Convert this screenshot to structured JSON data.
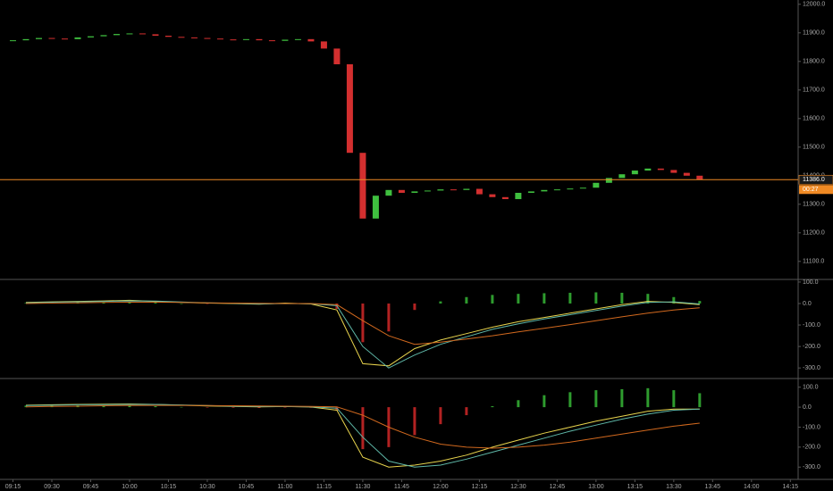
{
  "chart_data": [
    {
      "type": "line",
      "x": [
        "09:15",
        "09:20",
        "09:25",
        "09:30",
        "09:35",
        "09:40",
        "09:45",
        "09:50",
        "09:55",
        "10:00",
        "10:05",
        "10:10",
        "10:15",
        "10:20",
        "10:25",
        "10:30",
        "10:35",
        "10:40",
        "10:45",
        "10:50",
        "10:55",
        "11:00",
        "11:05",
        "11:10",
        "11:15",
        "11:20",
        "11:25",
        "11:30",
        "11:35",
        "11:40",
        "11:45",
        "11:50",
        "11:55",
        "12:00",
        "12:05",
        "12:10",
        "12:15",
        "12:20",
        "12:25",
        "12:30",
        "12:35",
        "12:40",
        "12:45",
        "12:50",
        "12:55",
        "13:00",
        "13:05",
        "13:10",
        "13:15",
        "13:20",
        "13:25",
        "13:30",
        "13:35",
        "13:40"
      ],
      "values": [
        11874,
        11878,
        11882,
        11880,
        11878,
        11884,
        11888,
        11892,
        11896,
        11898,
        11895,
        11890,
        11886,
        11884,
        11882,
        11880,
        11877,
        11876,
        11878,
        11874,
        11872,
        11876,
        11878,
        11870,
        11845,
        11790,
        11480,
        11250,
        11330,
        11350,
        11340,
        11345,
        11348,
        11352,
        11350,
        11354,
        11335,
        11325,
        11318,
        11340,
        11345,
        11350,
        11352,
        11355,
        11358,
        11375,
        11392,
        11405,
        11418,
        11425,
        11420,
        11410,
        11400,
        11386
      ],
      "up_color": "#3fbf3f",
      "down_color": "#d32f2f",
      "xlim": [
        "09:10",
        "14:18"
      ],
      "ylim": [
        11040,
        12015
      ],
      "yticks": [
        {
          "value": 11100,
          "label": "11100.0"
        },
        {
          "value": 11200,
          "label": "11200.0"
        },
        {
          "value": 11300,
          "label": "11300.0"
        },
        {
          "value": 11400,
          "label": "11400.0"
        },
        {
          "value": 11500,
          "label": "11500.0"
        },
        {
          "value": 11600,
          "label": "11600.0"
        },
        {
          "value": 11700,
          "label": "11700.0"
        },
        {
          "value": 11800,
          "label": "11800.0"
        },
        {
          "value": 11900,
          "label": "11900.0"
        },
        {
          "value": 12000,
          "label": "12000.0"
        }
      ],
      "price_line": 11386,
      "price_line_label": "11386.0",
      "price_line_color": "#f08a24",
      "countdown": "00:27"
    },
    {
      "type": "macd",
      "x": [
        "09:20",
        "09:30",
        "09:40",
        "09:50",
        "10:00",
        "10:10",
        "10:20",
        "10:30",
        "10:40",
        "10:50",
        "11:00",
        "11:10",
        "11:20",
        "11:30",
        "11:40",
        "11:50",
        "12:00",
        "12:10",
        "12:20",
        "12:30",
        "12:40",
        "12:50",
        "13:00",
        "13:10",
        "13:20",
        "13:30",
        "13:40"
      ],
      "series": [
        {
          "color": "#e8d44d",
          "values": [
            5,
            8,
            10,
            12,
            15,
            10,
            5,
            2,
            0,
            -3,
            2,
            -2,
            -30,
            -280,
            -290,
            -210,
            -170,
            -140,
            -110,
            -85,
            -65,
            -45,
            -25,
            -5,
            10,
            5,
            -5
          ]
        },
        {
          "color": "#5fb8a8",
          "values": [
            3,
            6,
            8,
            10,
            12,
            11,
            7,
            3,
            1,
            -2,
            0,
            -1,
            -10,
            -200,
            -300,
            -240,
            -190,
            -155,
            -120,
            -95,
            -72,
            -52,
            -32,
            -12,
            5,
            8,
            -2
          ]
        },
        {
          "color": "#d2691e",
          "values": [
            0,
            2,
            3,
            5,
            6,
            6,
            5,
            3,
            2,
            1,
            0,
            0,
            -5,
            -80,
            -150,
            -190,
            -180,
            -165,
            -150,
            -132,
            -115,
            -98,
            -80,
            -62,
            -45,
            -30,
            -20
          ]
        }
      ],
      "histogram": {
        "up_color": "#2e9b2e",
        "down_color": "#b22222",
        "values": [
          3,
          5,
          6,
          6,
          8,
          4,
          0,
          -1,
          -2,
          -3,
          1,
          -2,
          -25,
          -180,
          -130,
          -30,
          10,
          30,
          40,
          45,
          48,
          50,
          52,
          50,
          45,
          30,
          12
        ]
      },
      "xlim": [
        "09:10",
        "14:18"
      ],
      "ylim": [
        -345,
        108
      ],
      "yticks": [
        {
          "value": 100,
          "label": "100.0"
        },
        {
          "value": 0,
          "label": "0.0"
        },
        {
          "value": -100,
          "label": "-100.0"
        },
        {
          "value": -200,
          "label": "-200.0"
        },
        {
          "value": -300,
          "label": "-300.0"
        }
      ]
    },
    {
      "type": "macd",
      "x": [
        "09:20",
        "09:30",
        "09:40",
        "09:50",
        "10:00",
        "10:10",
        "10:20",
        "10:30",
        "10:40",
        "10:50",
        "11:00",
        "11:10",
        "11:20",
        "11:30",
        "11:40",
        "11:50",
        "12:00",
        "12:10",
        "12:20",
        "12:30",
        "12:40",
        "12:50",
        "13:00",
        "13:10",
        "13:20",
        "13:30",
        "13:40"
      ],
      "series": [
        {
          "color": "#e8d44d",
          "values": [
            10,
            12,
            14,
            15,
            16,
            14,
            10,
            6,
            4,
            2,
            3,
            1,
            -15,
            -250,
            -300,
            -290,
            -270,
            -240,
            -200,
            -165,
            -130,
            -100,
            -70,
            -45,
            -20,
            -10,
            -10
          ]
        },
        {
          "color": "#5fb8a8",
          "values": [
            8,
            10,
            12,
            13,
            14,
            14,
            11,
            8,
            5,
            3,
            3,
            2,
            -5,
            -150,
            -270,
            -300,
            -290,
            -260,
            -225,
            -190,
            -155,
            -120,
            -90,
            -60,
            -35,
            -15,
            -10
          ]
        },
        {
          "color": "#d2691e",
          "values": [
            2,
            4,
            5,
            7,
            8,
            9,
            9,
            8,
            7,
            6,
            5,
            4,
            2,
            -40,
            -100,
            -150,
            -185,
            -200,
            -205,
            -200,
            -190,
            -175,
            -155,
            -135,
            -115,
            -95,
            -80
          ]
        }
      ],
      "histogram": {
        "up_color": "#2e9b2e",
        "down_color": "#b22222",
        "values": [
          8,
          8,
          9,
          8,
          8,
          5,
          1,
          -2,
          -3,
          -4,
          -2,
          -3,
          -17,
          -210,
          -200,
          -140,
          -85,
          -40,
          5,
          35,
          60,
          75,
          85,
          90,
          95,
          85,
          70
        ]
      },
      "xlim": [
        "09:10",
        "14:18"
      ],
      "ylim": [
        -357,
        139
      ],
      "yticks": [
        {
          "value": 100,
          "label": "100.0"
        },
        {
          "value": 0,
          "label": "0.0"
        },
        {
          "value": -100,
          "label": "-100.0"
        },
        {
          "value": -200,
          "label": "-200.0"
        },
        {
          "value": -300,
          "label": "-300.0"
        }
      ],
      "xticks": [
        "09:15",
        "09:30",
        "09:45",
        "10:00",
        "10:15",
        "10:30",
        "10:45",
        "11:00",
        "11:15",
        "11:30",
        "11:45",
        "12:00",
        "12:15",
        "12:30",
        "12:45",
        "13:00",
        "13:15",
        "13:30",
        "13:45",
        "14:00",
        "14:15"
      ]
    }
  ]
}
